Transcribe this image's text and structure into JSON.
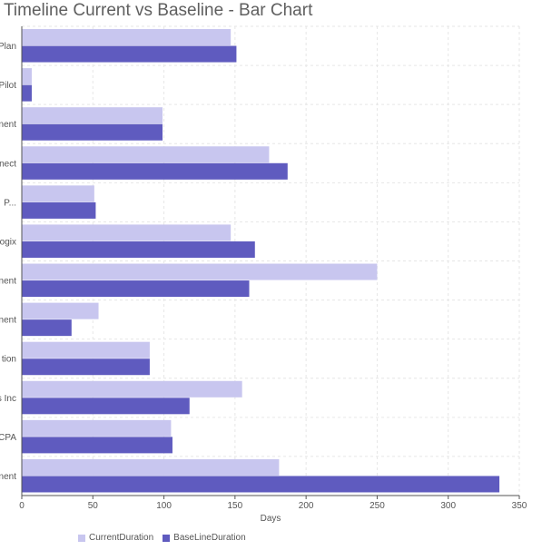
{
  "colors": {
    "current": "#c8c6ef",
    "baseline": "#5f5bbf",
    "grid": "#e6e6e6",
    "axis": "#555555"
  },
  "chart_data": {
    "type": "bar",
    "orientation": "horizontal",
    "title": "Timeline Current vs Baseline - Bar Chart",
    "xlabel": "Days",
    "ylabel": "",
    "xlim": [
      0,
      350
    ],
    "xticks": [
      0,
      50,
      100,
      150,
      200,
      250,
      300,
      350
    ],
    "grid": true,
    "legend_position": "bottom-left",
    "categories": [
      "Plan",
      "Pilot",
      "nent",
      "nect",
      "P...",
      "ogix",
      "nent",
      "nent",
      "tion",
      "s Inc",
      "CPA",
      "nent"
    ],
    "series": [
      {
        "name": "CurrentDuration",
        "values": [
          147,
          7,
          99,
          174,
          51,
          147,
          250,
          54,
          90,
          155,
          105,
          181
        ]
      },
      {
        "name": "BaseLineDuration",
        "values": [
          151,
          7,
          99,
          187,
          52,
          164,
          160,
          35,
          90,
          118,
          106,
          336
        ]
      }
    ]
  }
}
